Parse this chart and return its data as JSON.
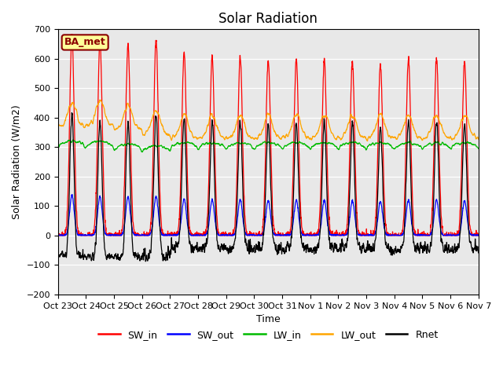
{
  "title": "Solar Radiation",
  "ylabel": "Solar Radiation (W/m2)",
  "xlabel": "Time",
  "ylim": [
    -200,
    700
  ],
  "yticks": [
    -200,
    -100,
    0,
    100,
    200,
    300,
    400,
    500,
    600,
    700
  ],
  "num_days": 15,
  "date_labels": [
    "Oct 23",
    "Oct 24",
    "Oct 25",
    "Oct 26",
    "Oct 27",
    "Oct 28",
    "Oct 29",
    "Oct 30",
    "Oct 31",
    "Nov 1",
    "Nov 2",
    "Nov 3",
    "Nov 4",
    "Nov 5",
    "Nov 6",
    "Nov 7"
  ],
  "colors": {
    "SW_in": "#ff0000",
    "SW_out": "#0000ff",
    "LW_in": "#00bb00",
    "LW_out": "#ffa500",
    "Rnet": "#000000"
  },
  "bg_color": "#e8e8e8",
  "annotation_text": "BA_met",
  "annotation_bg": "#ffff99",
  "annotation_border": "#8b0000",
  "title_fontsize": 12,
  "axis_label_fontsize": 9,
  "tick_fontsize": 8,
  "sw_in_peaks": [
    680,
    660,
    650,
    665,
    620,
    608,
    606,
    600,
    598,
    598,
    592,
    583,
    603,
    602,
    590
  ],
  "night_rnet": [
    -70,
    -75,
    -80,
    -85,
    -55,
    -55,
    -55,
    -55,
    -55,
    -55,
    -55,
    -55,
    -55,
    -55,
    -55
  ],
  "lw_out_base": [
    370,
    375,
    360,
    345,
    330,
    330,
    330,
    330,
    330,
    330,
    330,
    330,
    330,
    330,
    330
  ],
  "lw_in_base": [
    295,
    295,
    285,
    280,
    290,
    290,
    290,
    290,
    290,
    290,
    290,
    290,
    290,
    290,
    290
  ]
}
